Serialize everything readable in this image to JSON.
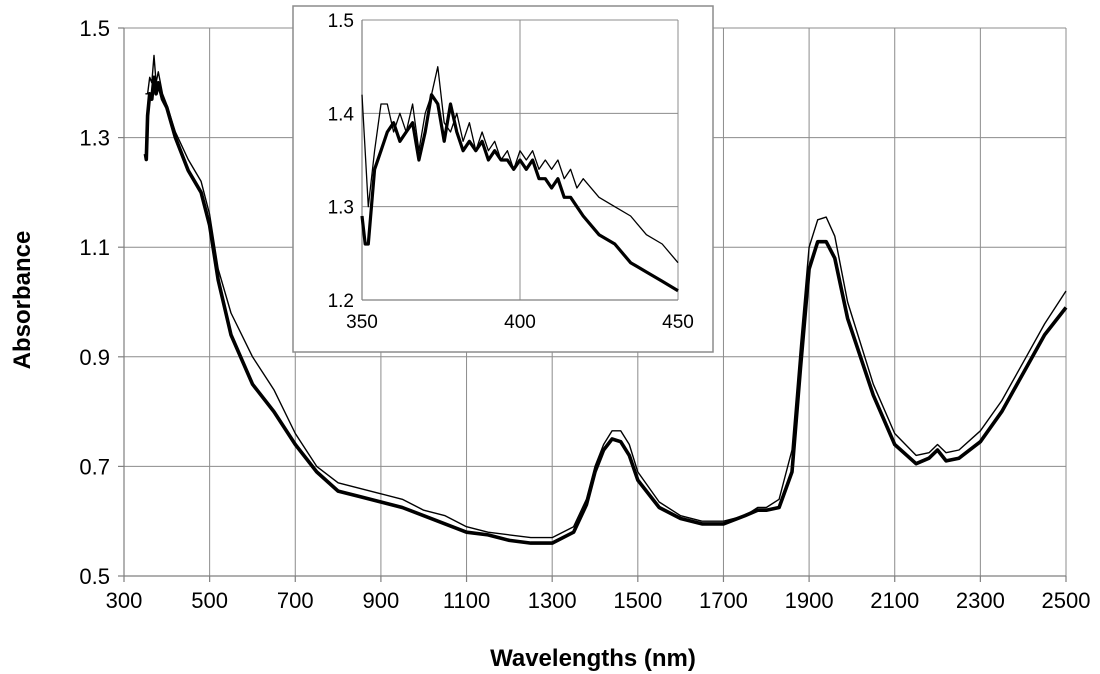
{
  "chart_data": [
    {
      "type": "line",
      "title": "",
      "xlabel": "Wavelengths (nm)",
      "ylabel": "Absorbance",
      "xlim": [
        300,
        2500
      ],
      "ylim": [
        0.5,
        1.5
      ],
      "xticks": [
        300,
        500,
        700,
        900,
        1100,
        1300,
        1500,
        1700,
        1900,
        2100,
        2300,
        2500
      ],
      "yticks": [
        0.5,
        0.7,
        0.9,
        1.1,
        1.3,
        1.5
      ],
      "xtick_labels": [
        "300",
        "500",
        "700",
        "900",
        "1100",
        "1300",
        "1500",
        "1700",
        "1900",
        "2100",
        "2300",
        "2500"
      ],
      "ytick_labels": [
        "0.5",
        "0.7",
        "0.9",
        "1.1",
        "1.3",
        "1.5"
      ],
      "grid": true,
      "legend": "none",
      "series": [
        {
          "color": "#000000",
          "style": "thin",
          "x": [
            350,
            355,
            360,
            365,
            370,
            375,
            380,
            390,
            400,
            420,
            450,
            480,
            500,
            520,
            550,
            600,
            650,
            700,
            750,
            800,
            850,
            900,
            950,
            1000,
            1050,
            1100,
            1150,
            1200,
            1250,
            1300,
            1350,
            1380,
            1400,
            1420,
            1440,
            1460,
            1480,
            1500,
            1550,
            1600,
            1650,
            1700,
            1750,
            1780,
            1800,
            1830,
            1860,
            1880,
            1900,
            1920,
            1940,
            1960,
            1990,
            2050,
            2100,
            2150,
            2180,
            2200,
            2220,
            2250,
            2300,
            2350,
            2400,
            2450,
            2500
          ],
          "y": [
            1.38,
            1.38,
            1.41,
            1.4,
            1.45,
            1.4,
            1.42,
            1.38,
            1.36,
            1.31,
            1.26,
            1.22,
            1.16,
            1.06,
            0.98,
            0.9,
            0.84,
            0.76,
            0.7,
            0.67,
            0.66,
            0.65,
            0.64,
            0.62,
            0.61,
            0.59,
            0.58,
            0.575,
            0.57,
            0.57,
            0.59,
            0.64,
            0.7,
            0.74,
            0.765,
            0.765,
            0.74,
            0.69,
            0.635,
            0.61,
            0.6,
            0.6,
            0.61,
            0.625,
            0.625,
            0.64,
            0.73,
            0.92,
            1.1,
            1.15,
            1.155,
            1.12,
            1.0,
            0.85,
            0.76,
            0.72,
            0.725,
            0.74,
            0.725,
            0.73,
            0.765,
            0.82,
            0.89,
            0.96,
            1.02
          ]
        },
        {
          "color": "#000000",
          "style": "thick",
          "x": [
            350,
            352,
            355,
            360,
            365,
            370,
            375,
            380,
            390,
            400,
            420,
            450,
            480,
            500,
            520,
            550,
            600,
            650,
            700,
            750,
            800,
            850,
            900,
            950,
            1000,
            1050,
            1100,
            1150,
            1200,
            1250,
            1300,
            1350,
            1380,
            1400,
            1420,
            1440,
            1460,
            1480,
            1500,
            1550,
            1600,
            1650,
            1700,
            1750,
            1780,
            1800,
            1830,
            1860,
            1880,
            1900,
            1920,
            1940,
            1960,
            1990,
            2050,
            2100,
            2150,
            2180,
            2200,
            2220,
            2250,
            2300,
            2350,
            2400,
            2450,
            2500
          ],
          "y": [
            1.27,
            1.26,
            1.34,
            1.38,
            1.37,
            1.41,
            1.38,
            1.4,
            1.37,
            1.355,
            1.3,
            1.24,
            1.2,
            1.14,
            1.04,
            0.94,
            0.85,
            0.8,
            0.74,
            0.69,
            0.655,
            0.645,
            0.635,
            0.625,
            0.61,
            0.595,
            0.58,
            0.575,
            0.565,
            0.56,
            0.56,
            0.58,
            0.63,
            0.69,
            0.73,
            0.75,
            0.745,
            0.72,
            0.675,
            0.625,
            0.605,
            0.595,
            0.595,
            0.61,
            0.62,
            0.62,
            0.625,
            0.69,
            0.88,
            1.06,
            1.11,
            1.11,
            1.08,
            0.97,
            0.83,
            0.74,
            0.705,
            0.715,
            0.73,
            0.71,
            0.715,
            0.745,
            0.8,
            0.87,
            0.94,
            0.99
          ]
        }
      ]
    },
    {
      "type": "line",
      "title": "",
      "xlabel": "",
      "ylabel": "",
      "xlim": [
        350,
        450
      ],
      "ylim": [
        1.2,
        1.5
      ],
      "xticks": [
        350,
        400,
        450
      ],
      "yticks": [
        1.2,
        1.3,
        1.4,
        1.5
      ],
      "xtick_labels": [
        "350",
        "400",
        "450"
      ],
      "ytick_labels": [
        "1.2",
        "1.3",
        "1.4",
        "1.5"
      ],
      "grid": true,
      "legend": "none",
      "series": [
        {
          "color": "#000000",
          "style": "thin",
          "x": [
            350,
            352,
            354,
            356,
            358,
            360,
            362,
            364,
            366,
            368,
            370,
            372,
            374,
            376,
            378,
            380,
            382,
            384,
            386,
            388,
            390,
            392,
            394,
            396,
            398,
            400,
            402,
            404,
            406,
            408,
            410,
            412,
            414,
            416,
            418,
            420,
            425,
            430,
            435,
            440,
            445,
            450
          ],
          "y": [
            1.42,
            1.3,
            1.36,
            1.41,
            1.41,
            1.38,
            1.4,
            1.38,
            1.41,
            1.36,
            1.4,
            1.42,
            1.45,
            1.39,
            1.38,
            1.4,
            1.37,
            1.39,
            1.36,
            1.38,
            1.36,
            1.37,
            1.35,
            1.36,
            1.34,
            1.36,
            1.35,
            1.36,
            1.34,
            1.35,
            1.34,
            1.35,
            1.33,
            1.34,
            1.32,
            1.33,
            1.31,
            1.3,
            1.29,
            1.27,
            1.26,
            1.24
          ]
        },
        {
          "color": "#000000",
          "style": "thick",
          "x": [
            350,
            351,
            352,
            354,
            356,
            358,
            360,
            362,
            364,
            366,
            368,
            370,
            372,
            374,
            376,
            378,
            380,
            382,
            384,
            386,
            388,
            390,
            392,
            394,
            396,
            398,
            400,
            402,
            404,
            406,
            408,
            410,
            412,
            414,
            416,
            418,
            420,
            425,
            430,
            435,
            440,
            445,
            450
          ],
          "y": [
            1.29,
            1.26,
            1.26,
            1.34,
            1.36,
            1.38,
            1.39,
            1.37,
            1.38,
            1.39,
            1.35,
            1.38,
            1.42,
            1.41,
            1.37,
            1.41,
            1.38,
            1.36,
            1.37,
            1.36,
            1.37,
            1.35,
            1.36,
            1.35,
            1.35,
            1.34,
            1.35,
            1.34,
            1.35,
            1.33,
            1.33,
            1.32,
            1.33,
            1.31,
            1.31,
            1.3,
            1.29,
            1.27,
            1.26,
            1.24,
            1.23,
            1.22,
            1.21
          ]
        }
      ]
    }
  ]
}
